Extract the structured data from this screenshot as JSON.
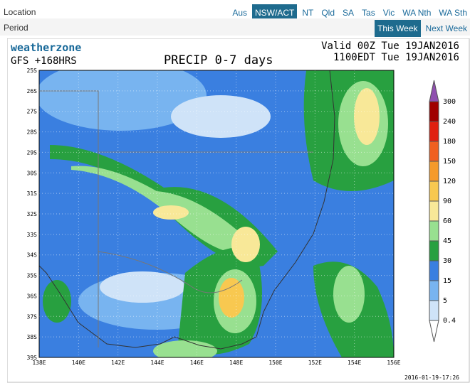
{
  "nav": {
    "location_label": "Location",
    "regions": [
      "Aus",
      "NSW/ACT",
      "NT",
      "Qld",
      "SA",
      "Tas",
      "Vic",
      "WA Nth",
      "WA Sth"
    ],
    "active_region": "NSW/ACT",
    "period_label": "Period",
    "periods": [
      "This Week",
      "Next Week"
    ],
    "active_period": "This Week"
  },
  "map": {
    "brand": "weatherzone",
    "model": "GFS +168HRS",
    "title": "PRECIP 0-7 days",
    "valid": "Valid 00Z Tue 19JAN2016",
    "local": "1100EDT Tue 19JAN2016",
    "lat_labels": [
      "25S",
      "26S",
      "27S",
      "28S",
      "29S",
      "30S",
      "31S",
      "32S",
      "33S",
      "34S",
      "35S",
      "36S",
      "37S",
      "38S",
      "39S"
    ],
    "lon_labels": [
      "138E",
      "140E",
      "142E",
      "144E",
      "146E",
      "148E",
      "150E",
      "152E",
      "154E",
      "156E"
    ],
    "legend": [
      {
        "value": 300,
        "color": "#9050b0"
      },
      {
        "value": 240,
        "color": "#a00000"
      },
      {
        "value": 180,
        "color": "#e02010"
      },
      {
        "value": 150,
        "color": "#f06020"
      },
      {
        "value": 120,
        "color": "#f59a2a"
      },
      {
        "value": 90,
        "color": "#f8c850"
      },
      {
        "value": 60,
        "color": "#f8e898"
      },
      {
        "value": 45,
        "color": "#98e090"
      },
      {
        "value": 30,
        "color": "#28a040"
      },
      {
        "value": 15,
        "color": "#3a7fe0"
      },
      {
        "value": 5,
        "color": "#78b4f0"
      },
      {
        "value": 0.4,
        "color": "#cfe3f8"
      }
    ],
    "timestamp": "2016-01-19-17:26"
  }
}
